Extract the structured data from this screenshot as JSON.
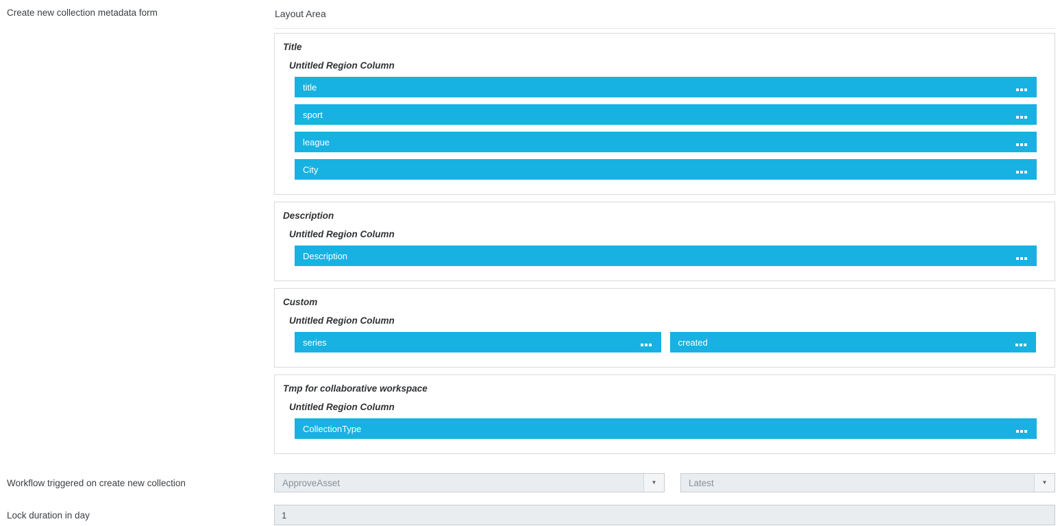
{
  "colors": {
    "accent": "#17b2e2",
    "bar_text": "#ffffff"
  },
  "left_panel": {
    "metadata_form_label": "Create new collection metadata form",
    "workflow_label": "Workflow triggered on create new collection",
    "lock_duration_label": "Lock duration in day"
  },
  "layout_area": {
    "title": "Layout Area",
    "sections": [
      {
        "title": "Title",
        "region_label": "Untitled Region Column",
        "fields": [
          {
            "label": "title",
            "width": "full"
          },
          {
            "label": "sport",
            "width": "full"
          },
          {
            "label": "league",
            "width": "full"
          },
          {
            "label": "City",
            "width": "full"
          }
        ]
      },
      {
        "title": "Description",
        "region_label": "Untitled Region Column",
        "fields": [
          {
            "label": "Description",
            "width": "full"
          }
        ]
      },
      {
        "title": "Custom",
        "region_label": "Untitled Region Column",
        "fields": [
          {
            "label": "series",
            "width": "half"
          },
          {
            "label": "created",
            "width": "half"
          }
        ]
      },
      {
        "title": "Tmp for collaborative workspace",
        "region_label": "Untitled Region Column",
        "fields": [
          {
            "label": "CollectionType",
            "width": "full"
          }
        ]
      }
    ]
  },
  "workflow": {
    "selected_workflow": "ApproveAsset",
    "selected_version": "Latest"
  },
  "lock_duration": {
    "value": "1"
  }
}
